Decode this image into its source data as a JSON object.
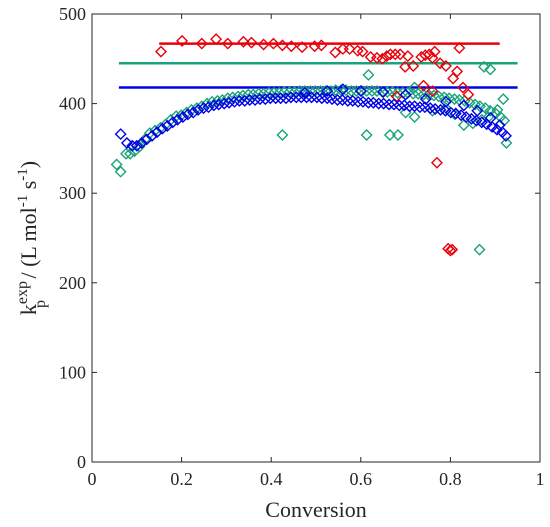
{
  "chart_data": {
    "type": "scatter",
    "xlabel": "Conversion",
    "ylabel": {
      "base": "k",
      "sup": "exp",
      "sub": "p",
      "units": " / (L mol",
      "exp1": "-1",
      "mid": " s",
      "exp2": "-1",
      "end": ")"
    },
    "xlim": [
      0,
      1
    ],
    "ylim": [
      0,
      500
    ],
    "xticks": [
      0,
      0.2,
      0.4,
      0.6,
      0.8,
      1
    ],
    "xtick_labels": [
      "0",
      "0.2",
      "0.4",
      "0.6",
      "0.8",
      "1"
    ],
    "yticks": [
      0,
      100,
      200,
      300,
      400,
      500
    ],
    "ytick_labels": [
      "0",
      "100",
      "200",
      "300",
      "400",
      "500"
    ],
    "grid": false,
    "legend": "none",
    "reference_lines": [
      {
        "color": "#e8000b",
        "y": 467,
        "x": [
          0.15,
          0.91
        ]
      },
      {
        "color": "#1aa37a",
        "y": 445,
        "x": [
          0.06,
          0.95
        ]
      },
      {
        "color": "#0000e6",
        "y": 418,
        "x": [
          0.06,
          0.95
        ]
      }
    ],
    "series": [
      {
        "color": "#e8000b",
        "marker": "diamond-open",
        "points": [
          [
            0.154,
            458
          ],
          [
            0.201,
            470
          ],
          [
            0.245,
            467
          ],
          [
            0.277,
            472
          ],
          [
            0.303,
            467
          ],
          [
            0.338,
            469
          ],
          [
            0.356,
            468
          ],
          [
            0.383,
            466
          ],
          [
            0.405,
            467
          ],
          [
            0.425,
            465
          ],
          [
            0.445,
            464
          ],
          [
            0.469,
            463
          ],
          [
            0.497,
            464
          ],
          [
            0.512,
            465
          ],
          [
            0.543,
            457
          ],
          [
            0.56,
            461
          ],
          [
            0.575,
            461
          ],
          [
            0.593,
            459
          ],
          [
            0.604,
            458
          ],
          [
            0.622,
            452
          ],
          [
            0.636,
            451
          ],
          [
            0.648,
            450
          ],
          [
            0.658,
            453
          ],
          [
            0.666,
            455
          ],
          [
            0.677,
            455
          ],
          [
            0.688,
            455
          ],
          [
            0.699,
            441
          ],
          [
            0.705,
            453
          ],
          [
            0.717,
            442
          ],
          [
            0.735,
            452
          ],
          [
            0.744,
            454
          ],
          [
            0.753,
            455
          ],
          [
            0.76,
            451
          ],
          [
            0.765,
            458
          ],
          [
            0.777,
            445
          ],
          [
            0.79,
            442
          ],
          [
            0.806,
            428
          ],
          [
            0.815,
            436
          ],
          [
            0.82,
            462
          ],
          [
            0.77,
            334
          ],
          [
            0.795,
            238
          ],
          [
            0.8,
            236
          ],
          [
            0.804,
            237
          ],
          [
            0.828,
            418
          ],
          [
            0.84,
            410
          ],
          [
            0.76,
            414
          ],
          [
            0.68,
            408
          ],
          [
            0.74,
            420
          ]
        ]
      },
      {
        "color": "#1aa37a",
        "marker": "diamond-open",
        "points": [
          [
            0.055,
            332
          ],
          [
            0.064,
            324
          ],
          [
            0.076,
            344
          ],
          [
            0.085,
            344
          ],
          [
            0.095,
            347
          ],
          [
            0.106,
            352
          ],
          [
            0.118,
            360
          ],
          [
            0.129,
            367
          ],
          [
            0.141,
            370
          ],
          [
            0.153,
            373
          ],
          [
            0.165,
            377
          ],
          [
            0.176,
            382
          ],
          [
            0.188,
            386
          ],
          [
            0.199,
            387
          ],
          [
            0.211,
            390
          ],
          [
            0.222,
            393
          ],
          [
            0.234,
            395
          ],
          [
            0.245,
            397
          ],
          [
            0.257,
            400
          ],
          [
            0.268,
            402
          ],
          [
            0.28,
            403
          ],
          [
            0.291,
            404
          ],
          [
            0.303,
            406
          ],
          [
            0.314,
            407
          ],
          [
            0.326,
            408
          ],
          [
            0.337,
            409
          ],
          [
            0.349,
            410
          ],
          [
            0.36,
            410
          ],
          [
            0.372,
            411
          ],
          [
            0.383,
            411
          ],
          [
            0.395,
            412
          ],
          [
            0.406,
            412
          ],
          [
            0.418,
            412
          ],
          [
            0.429,
            413
          ],
          [
            0.441,
            413
          ],
          [
            0.452,
            413
          ],
          [
            0.464,
            414
          ],
          [
            0.475,
            414
          ],
          [
            0.487,
            414
          ],
          [
            0.498,
            414
          ],
          [
            0.51,
            414
          ],
          [
            0.521,
            414
          ],
          [
            0.533,
            414
          ],
          [
            0.544,
            415
          ],
          [
            0.556,
            415
          ],
          [
            0.567,
            415
          ],
          [
            0.579,
            414
          ],
          [
            0.59,
            414
          ],
          [
            0.602,
            414
          ],
          [
            0.613,
            414
          ],
          [
            0.625,
            414
          ],
          [
            0.636,
            414
          ],
          [
            0.648,
            413
          ],
          [
            0.659,
            413
          ],
          [
            0.671,
            413
          ],
          [
            0.682,
            412
          ],
          [
            0.694,
            412
          ],
          [
            0.705,
            412
          ],
          [
            0.717,
            411
          ],
          [
            0.728,
            411
          ],
          [
            0.74,
            410
          ],
          [
            0.751,
            410
          ],
          [
            0.763,
            409
          ],
          [
            0.774,
            408
          ],
          [
            0.786,
            407
          ],
          [
            0.797,
            406
          ],
          [
            0.809,
            405
          ],
          [
            0.82,
            404
          ],
          [
            0.832,
            403
          ],
          [
            0.843,
            401
          ],
          [
            0.855,
            399
          ],
          [
            0.866,
            397
          ],
          [
            0.878,
            395
          ],
          [
            0.889,
            392
          ],
          [
            0.901,
            389
          ],
          [
            0.912,
            385
          ],
          [
            0.92,
            381
          ],
          [
            0.925,
            356
          ],
          [
            0.918,
            405
          ],
          [
            0.905,
            393
          ],
          [
            0.885,
            385
          ],
          [
            0.87,
            382
          ],
          [
            0.85,
            378
          ],
          [
            0.83,
            376
          ],
          [
            0.7,
            390
          ],
          [
            0.72,
            385
          ],
          [
            0.76,
            392
          ],
          [
            0.79,
            395
          ],
          [
            0.81,
            388
          ],
          [
            0.425,
            365
          ],
          [
            0.613,
            365
          ],
          [
            0.665,
            365
          ],
          [
            0.683,
            365
          ],
          [
            0.865,
            237
          ],
          [
            0.617,
            432
          ],
          [
            0.875,
            441
          ],
          [
            0.889,
            438
          ],
          [
            0.72,
            418
          ]
        ]
      },
      {
        "color": "#0000e6",
        "marker": "diamond-open",
        "points": [
          [
            0.064,
            366
          ],
          [
            0.078,
            356
          ],
          [
            0.09,
            353
          ],
          [
            0.1,
            353
          ],
          [
            0.111,
            356
          ],
          [
            0.122,
            360
          ],
          [
            0.134,
            364
          ],
          [
            0.145,
            368
          ],
          [
            0.157,
            372
          ],
          [
            0.168,
            375
          ],
          [
            0.18,
            379
          ],
          [
            0.191,
            382
          ],
          [
            0.203,
            385
          ],
          [
            0.214,
            388
          ],
          [
            0.226,
            390
          ],
          [
            0.237,
            393
          ],
          [
            0.249,
            395
          ],
          [
            0.26,
            396
          ],
          [
            0.272,
            398
          ],
          [
            0.283,
            399
          ],
          [
            0.295,
            400
          ],
          [
            0.306,
            401
          ],
          [
            0.318,
            402
          ],
          [
            0.329,
            403
          ],
          [
            0.341,
            403
          ],
          [
            0.352,
            404
          ],
          [
            0.364,
            404
          ],
          [
            0.375,
            405
          ],
          [
            0.387,
            405
          ],
          [
            0.398,
            406
          ],
          [
            0.41,
            406
          ],
          [
            0.421,
            406
          ],
          [
            0.433,
            406
          ],
          [
            0.444,
            407
          ],
          [
            0.456,
            407
          ],
          [
            0.467,
            407
          ],
          [
            0.479,
            407
          ],
          [
            0.49,
            407
          ],
          [
            0.502,
            407
          ],
          [
            0.513,
            406
          ],
          [
            0.525,
            406
          ],
          [
            0.536,
            405
          ],
          [
            0.548,
            404
          ],
          [
            0.559,
            404
          ],
          [
            0.571,
            403
          ],
          [
            0.582,
            403
          ],
          [
            0.594,
            402
          ],
          [
            0.605,
            402
          ],
          [
            0.617,
            401
          ],
          [
            0.628,
            401
          ],
          [
            0.64,
            400
          ],
          [
            0.651,
            400
          ],
          [
            0.663,
            399
          ],
          [
            0.674,
            399
          ],
          [
            0.686,
            398
          ],
          [
            0.697,
            398
          ],
          [
            0.709,
            397
          ],
          [
            0.72,
            397
          ],
          [
            0.732,
            396
          ],
          [
            0.743,
            396
          ],
          [
            0.755,
            395
          ],
          [
            0.766,
            394
          ],
          [
            0.778,
            393
          ],
          [
            0.789,
            392
          ],
          [
            0.801,
            390
          ],
          [
            0.812,
            389
          ],
          [
            0.824,
            387
          ],
          [
            0.835,
            385
          ],
          [
            0.847,
            383
          ],
          [
            0.858,
            381
          ],
          [
            0.87,
            379
          ],
          [
            0.881,
            377
          ],
          [
            0.893,
            374
          ],
          [
            0.904,
            371
          ],
          [
            0.916,
            368
          ],
          [
            0.924,
            364
          ],
          [
            0.475,
            412
          ],
          [
            0.525,
            414
          ],
          [
            0.56,
            416
          ],
          [
            0.6,
            414
          ],
          [
            0.65,
            413
          ],
          [
            0.7,
            410
          ],
          [
            0.745,
            405
          ],
          [
            0.79,
            402
          ],
          [
            0.83,
            398
          ],
          [
            0.86,
            392
          ],
          [
            0.89,
            384
          ],
          [
            0.91,
            376
          ]
        ]
      }
    ]
  }
}
